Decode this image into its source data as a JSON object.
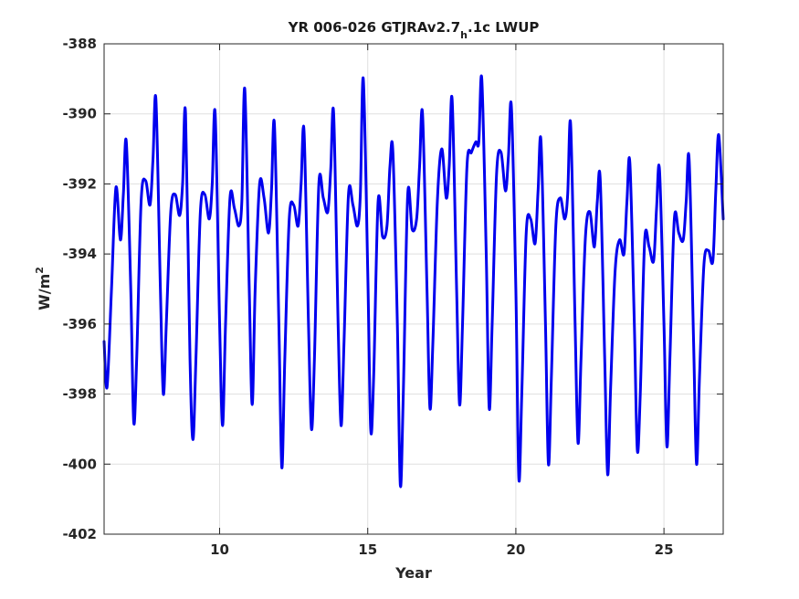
{
  "chart_data": {
    "type": "line",
    "title": {
      "main": "YR 006-026 GTJRAv2.7",
      "subscript": "h",
      "suffix": ".1c LWUP"
    },
    "xlabel": "Year",
    "ylabel": {
      "base": "W/m",
      "superscript": "2"
    },
    "xlim": [
      6.1,
      27.0
    ],
    "ylim": [
      -402,
      -388
    ],
    "xticks": [
      10,
      15,
      20,
      25
    ],
    "xtick_labels": [
      "10",
      "15",
      "20",
      "25"
    ],
    "yticks": [
      -402,
      -400,
      -398,
      -396,
      -394,
      -392,
      -390,
      -388
    ],
    "ytick_labels": [
      "-402",
      "-400",
      "-398",
      "-396",
      "-394",
      "-392",
      "-390",
      "-388"
    ],
    "grid": true,
    "line_color": "#0000ee",
    "series": [
      {
        "x": [
          6.1,
          6.2,
          6.35,
          6.5,
          6.65,
          6.75,
          6.85,
          7.0,
          7.1,
          7.2,
          7.35,
          7.5,
          7.65,
          7.75,
          7.85,
          8.0,
          8.1,
          8.2,
          8.35,
          8.5,
          8.65,
          8.75,
          8.85,
          9.0,
          9.1,
          9.2,
          9.35,
          9.5,
          9.65,
          9.75,
          9.85,
          10.0,
          10.1,
          10.2,
          10.35,
          10.5,
          10.65,
          10.75,
          10.85,
          11.0,
          11.1,
          11.2,
          11.35,
          11.5,
          11.65,
          11.75,
          11.85,
          12.0,
          12.1,
          12.2,
          12.35,
          12.5,
          12.65,
          12.75,
          12.85,
          13.0,
          13.1,
          13.2,
          13.35,
          13.5,
          13.65,
          13.75,
          13.85,
          14.0,
          14.1,
          14.2,
          14.35,
          14.5,
          14.65,
          14.75,
          14.85,
          15.0,
          15.1,
          15.2,
          15.35,
          15.5,
          15.65,
          15.75,
          15.85,
          16.0,
          16.1,
          16.2,
          16.35,
          16.5,
          16.65,
          16.75,
          16.85,
          17.0,
          17.1,
          17.2,
          17.35,
          17.5,
          17.65,
          17.75,
          17.85,
          18.0,
          18.1,
          18.2,
          18.35,
          18.5,
          18.65,
          18.75,
          18.85,
          19.0,
          19.1,
          19.2,
          19.35,
          19.5,
          19.65,
          19.75,
          19.85,
          20.0,
          20.1,
          20.2,
          20.35,
          20.5,
          20.65,
          20.75,
          20.85,
          21.0,
          21.1,
          21.2,
          21.35,
          21.5,
          21.65,
          21.75,
          21.85,
          22.0,
          22.1,
          22.2,
          22.35,
          22.5,
          22.65,
          22.75,
          22.85,
          23.0,
          23.1,
          23.2,
          23.35,
          23.5,
          23.65,
          23.75,
          23.85,
          24.0,
          24.1,
          24.2,
          24.35,
          24.5,
          24.65,
          24.75,
          24.85,
          25.0,
          25.1,
          25.2,
          25.35,
          25.5,
          25.65,
          25.75,
          25.85,
          26.0,
          26.1,
          26.2,
          26.35,
          26.5,
          26.65,
          26.75,
          26.85,
          27.0
        ],
        "values": [
          -396.5,
          -397.8,
          -395.0,
          -392.1,
          -393.6,
          -392.3,
          -390.8,
          -395.0,
          -398.8,
          -397.0,
          -392.5,
          -391.9,
          -392.6,
          -391.3,
          -389.6,
          -395.0,
          -398.0,
          -396.0,
          -392.8,
          -392.3,
          -392.9,
          -392.0,
          -390.0,
          -397.0,
          -399.3,
          -397.0,
          -392.8,
          -392.3,
          -393.0,
          -392.0,
          -390.0,
          -396.0,
          -398.9,
          -396.0,
          -392.4,
          -392.7,
          -393.2,
          -392.5,
          -389.3,
          -395.0,
          -398.3,
          -395.0,
          -392.0,
          -392.4,
          -393.4,
          -392.2,
          -390.3,
          -396.0,
          -400.1,
          -397.0,
          -393.0,
          -392.6,
          -393.2,
          -392.0,
          -390.5,
          -396.0,
          -399.0,
          -397.0,
          -392.0,
          -392.4,
          -392.8,
          -391.6,
          -390.0,
          -396.0,
          -398.9,
          -396.5,
          -392.3,
          -392.6,
          -393.2,
          -392.3,
          -389.0,
          -394.5,
          -399.0,
          -397.5,
          -392.5,
          -393.5,
          -393.2,
          -391.5,
          -391.1,
          -396.0,
          -400.6,
          -398.0,
          -392.3,
          -393.3,
          -393.0,
          -391.5,
          -390.0,
          -395.0,
          -398.4,
          -396.5,
          -392.5,
          -391.0,
          -392.4,
          -391.5,
          -389.6,
          -395.0,
          -398.3,
          -396.0,
          -391.5,
          -391.1,
          -390.8,
          -390.8,
          -389.0,
          -394.0,
          -398.4,
          -396.0,
          -391.7,
          -391.1,
          -392.2,
          -391.2,
          -389.8,
          -395.0,
          -400.4,
          -398.0,
          -393.4,
          -393.0,
          -393.7,
          -392.2,
          -390.8,
          -396.0,
          -400.0,
          -397.5,
          -393.2,
          -392.4,
          -393.0,
          -392.3,
          -390.3,
          -396.0,
          -399.4,
          -397.0,
          -393.5,
          -392.8,
          -393.8,
          -392.5,
          -391.9,
          -397.0,
          -400.3,
          -397.8,
          -394.5,
          -393.6,
          -394.0,
          -392.5,
          -391.4,
          -396.0,
          -399.6,
          -398.0,
          -393.6,
          -393.8,
          -394.2,
          -392.7,
          -391.6,
          -396.0,
          -399.5,
          -397.0,
          -393.0,
          -393.4,
          -393.6,
          -392.5,
          -391.3,
          -396.5,
          -400.0,
          -397.5,
          -394.3,
          -393.9,
          -394.2,
          -392.2,
          -390.6,
          -393.0
        ]
      }
    ]
  }
}
